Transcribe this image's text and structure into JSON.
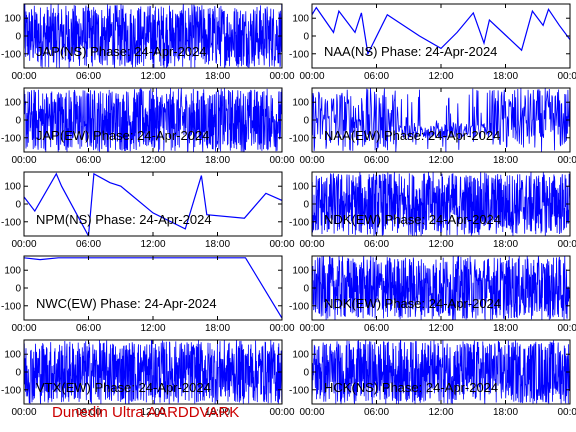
{
  "chart_data": [
    {
      "type": "line",
      "title": "JAP(NS) Phase: 24-Apr-2024",
      "ylim": [
        -180,
        180
      ],
      "yticks": [
        "100",
        "0",
        "-100"
      ],
      "xticks": [
        "00:00",
        "06:00",
        "12:00",
        "18:00",
        "00:00"
      ],
      "grid": false,
      "color": "#0000ff",
      "trace": "dense"
    },
    {
      "type": "line",
      "title": "NAA(NS) Phase: 24-Apr-2024",
      "ylim": [
        -180,
        180
      ],
      "yticks": [
        "100",
        "0",
        "-100"
      ],
      "xticks": [
        "00:00",
        "06:00",
        "12:00",
        "18:00",
        "00:00"
      ],
      "grid": false,
      "color": "#0000ff",
      "trace": "drift",
      "x_hours": [
        0,
        0.4,
        2,
        2.5,
        4,
        4.6,
        5.2,
        7,
        10,
        12,
        13.5,
        15,
        16,
        16.5,
        19.5,
        20.5,
        21.5,
        22,
        23,
        24
      ],
      "y_deg": [
        120,
        160,
        20,
        140,
        20,
        130,
        -100,
        120,
        0,
        -70,
        20,
        130,
        -40,
        90,
        -80,
        140,
        60,
        150,
        60,
        -20
      ]
    },
    {
      "type": "line",
      "title": "JAP(EW) Phase: 24-Apr-2024",
      "ylim": [
        -180,
        180
      ],
      "yticks": [
        "100",
        "0",
        "-100"
      ],
      "xticks": [
        "00:00",
        "06:00",
        "12:00",
        "18:00",
        "00:00"
      ],
      "grid": false,
      "color": "#0000ff",
      "trace": "dense"
    },
    {
      "type": "line",
      "title": "NAA(EW) Phase: 24-Apr-2024",
      "ylim": [
        -180,
        180
      ],
      "yticks": [
        "100",
        "0",
        "-100"
      ],
      "xticks": [
        "00:00",
        "06:00",
        "12:00",
        "18:00",
        "00:00"
      ],
      "grid": false,
      "color": "#0000ff",
      "trace": "mixed"
    },
    {
      "type": "line",
      "title": "NPM(NS) Phase: 24-Apr-2024",
      "ylim": [
        -180,
        180
      ],
      "yticks": [
        "100",
        "0",
        "-100"
      ],
      "xticks": [
        "00:00",
        "06:00",
        "12:00",
        "18:00",
        "00:00"
      ],
      "grid": false,
      "color": "#0000ff",
      "trace": "drift",
      "x_hours": [
        0,
        1,
        3,
        3.5,
        6,
        6.5,
        8,
        9,
        12,
        15,
        16.5,
        17,
        20.5,
        22.5,
        24
      ],
      "y_deg": [
        40,
        -40,
        170,
        100,
        -180,
        170,
        120,
        100,
        -50,
        -140,
        160,
        -60,
        -80,
        60,
        20
      ]
    },
    {
      "type": "line",
      "title": "NDK(EW) Phase: 24-Apr-2024",
      "ylim": [
        -180,
        180
      ],
      "yticks": [
        "100",
        "0",
        "-100"
      ],
      "xticks": [
        "00:00",
        "06:00",
        "12:00",
        "18:00",
        "00:00"
      ],
      "grid": false,
      "color": "#0000ff",
      "trace": "dense"
    },
    {
      "type": "line",
      "title": "NWC(EW) Phase: 24-Apr-2024",
      "ylim": [
        -180,
        180
      ],
      "yticks": [
        "100",
        "0",
        "-100"
      ],
      "xticks": [
        "00:00",
        "06:00",
        "12:00",
        "18:00",
        "00:00"
      ],
      "grid": false,
      "color": "#0000ff",
      "trace": "drift",
      "x_hours": [
        0,
        1.5,
        3.2,
        4.8,
        6.5,
        8.2,
        10,
        11.7,
        13.5,
        15.2,
        17,
        18.7,
        20.6,
        24
      ],
      "y_deg": [
        170,
        160,
        170,
        170,
        170,
        170,
        170,
        170,
        170,
        170,
        170,
        170,
        170,
        -170
      ]
    },
    {
      "type": "line",
      "title": "NDK(EW) Phase: 24-Apr-2024",
      "ylim": [
        -180,
        180
      ],
      "yticks": [
        "100",
        "0",
        "-100"
      ],
      "xticks": [
        "00:00",
        "06:00",
        "12:00",
        "18:00",
        "00:00"
      ],
      "grid": false,
      "color": "#0000ff",
      "trace": "dense"
    },
    {
      "type": "line",
      "title": "VTX(EW) Phase: 24-Apr-2024",
      "ylim": [
        -180,
        180
      ],
      "yticks": [
        "100",
        "0",
        "-100"
      ],
      "xticks": [
        "00:00",
        "06:00",
        "12:00",
        "18:00",
        "00:00"
      ],
      "grid": false,
      "color": "#0000ff",
      "trace": "dense"
    },
    {
      "type": "line",
      "title": "HCK(NS) Phase: 24-Apr-2024",
      "ylim": [
        -180,
        180
      ],
      "yticks": [
        "100",
        "0",
        "-100"
      ],
      "xticks": [
        "00:00",
        "06:00",
        "12:00",
        "18:00",
        "00:00"
      ],
      "grid": false,
      "color": "#0000ff",
      "trace": "dense"
    }
  ],
  "footer": "Dunedin Ultra AARDDVARK"
}
